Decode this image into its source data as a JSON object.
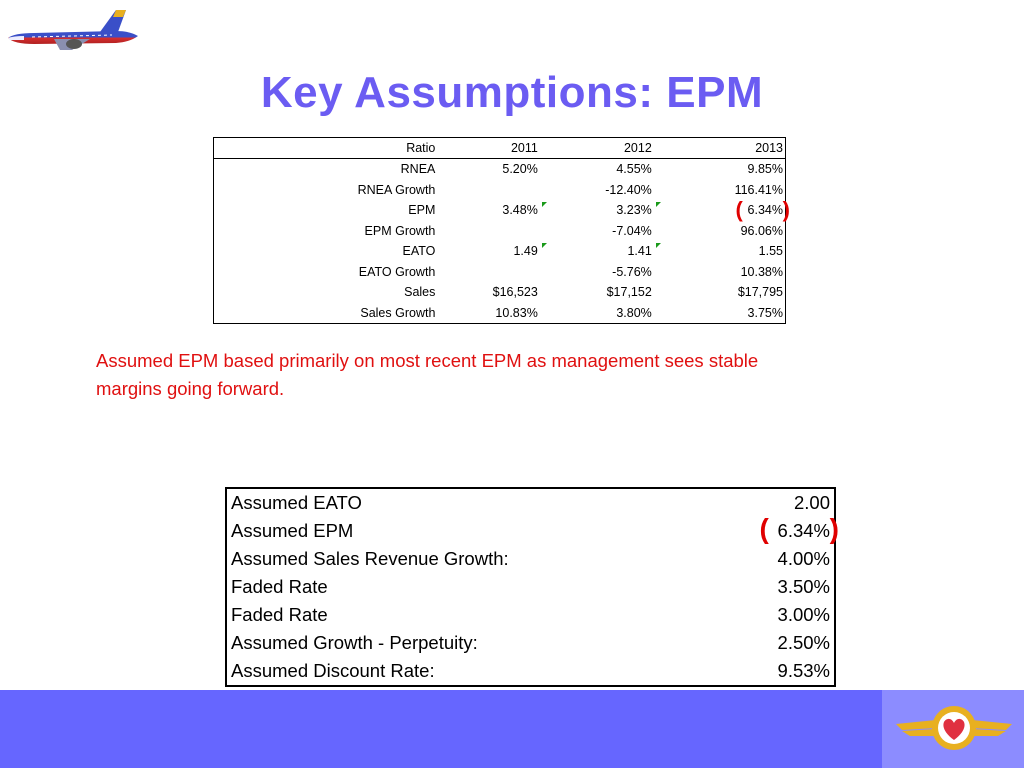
{
  "title": "Key Assumptions: EPM",
  "ratio_table": {
    "headers": [
      "Ratio",
      "2011",
      "2012",
      "2013"
    ],
    "rows": [
      {
        "label": "RNEA",
        "v2011": "5.20%",
        "v2012": "4.55%",
        "v2013": "9.85%"
      },
      {
        "label": "RNEA Growth",
        "v2011": "",
        "v2012": "-12.40%",
        "v2013": "116.41%"
      },
      {
        "label": "EPM",
        "v2011": "3.48%",
        "v2012": "3.23%",
        "v2013": "6.34%"
      },
      {
        "label": "EPM Growth",
        "v2011": "",
        "v2012": "-7.04%",
        "v2013": "96.06%"
      },
      {
        "label": "EATO",
        "v2011": "1.49",
        "v2012": "1.41",
        "v2013": "1.55"
      },
      {
        "label": "EATO Growth",
        "v2011": "",
        "v2012": "-5.76%",
        "v2013": "10.38%"
      },
      {
        "label": "Sales",
        "v2011": "$16,523",
        "v2012": "$17,152",
        "v2013": "$17,795"
      },
      {
        "label": "Sales Growth",
        "v2011": "10.83%",
        "v2012": "3.80%",
        "v2013": "3.75%"
      }
    ]
  },
  "note": "Assumed EPM based primarily on most recent EPM as management sees stable margins going forward.",
  "assumptions": [
    {
      "label": "Assumed EATO",
      "value": "2.00"
    },
    {
      "label": "Assumed EPM",
      "value": "6.34%"
    },
    {
      "label": "Assumed Sales Revenue Growth:",
      "value": "4.00%"
    },
    {
      "label": "Faded Rate",
      "value": "3.50%"
    },
    {
      "label": "Faded Rate",
      "value": "3.00%"
    },
    {
      "label": "Assumed Growth - Perpetuity:",
      "value": "2.50%"
    },
    {
      "label": "Assumed Discount Rate:",
      "value": "9.53%"
    }
  ],
  "colors": {
    "title": "#6b5cf2",
    "note": "#e01010",
    "footer": "#6666ff",
    "highlight_paren": "#e00000"
  },
  "icons": [
    "airplane-icon",
    "southwest-wings-logo-icon"
  ]
}
